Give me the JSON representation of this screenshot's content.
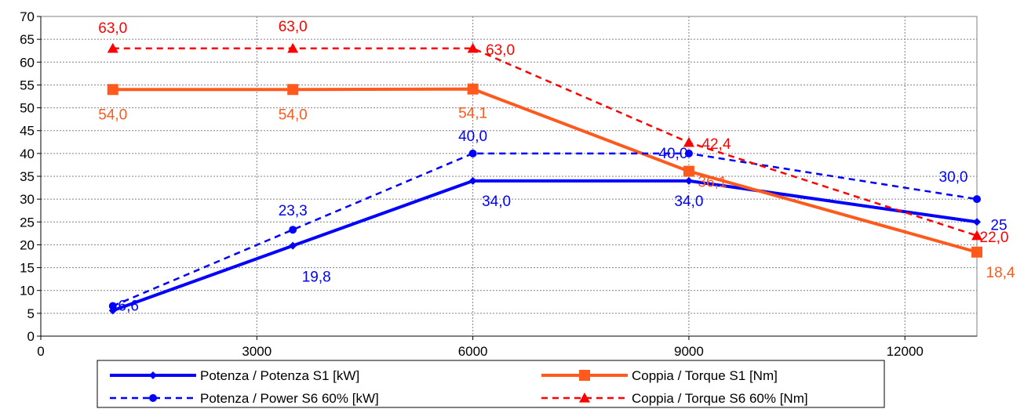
{
  "chart_data": {
    "type": "line",
    "title": "",
    "xlabel": "",
    "ylabel": "",
    "xlim": [
      0,
      13000
    ],
    "ylim": [
      0,
      70
    ],
    "x_ticks": [
      0,
      3000,
      6000,
      9000,
      12000
    ],
    "y_ticks": [
      0,
      5,
      10,
      15,
      20,
      25,
      30,
      35,
      40,
      45,
      50,
      55,
      60,
      65,
      70
    ],
    "grid": true,
    "legend_position": "bottom",
    "series": [
      {
        "name": "Potenza / Potenza S1 [kW]",
        "color": "#0000ff",
        "dash": "solid",
        "marker": "diamond",
        "x": [
          1000,
          3500,
          6000,
          9000,
          13000
        ],
        "y": [
          5.6,
          19.8,
          34.0,
          34.0,
          25.0
        ],
        "labels": [
          "",
          "19,8",
          "34,0",
          "34,0",
          "25"
        ]
      },
      {
        "name": "Coppia / Torque S1 [Nm]",
        "color": "#ff5a1e",
        "dash": "solid",
        "marker": "square",
        "x": [
          1000,
          3500,
          6000,
          9000,
          13000
        ],
        "y": [
          54.0,
          54.0,
          54.1,
          36.1,
          18.4
        ],
        "labels": [
          "54,0",
          "54,0",
          "54,1",
          "36,1",
          "18,4"
        ]
      },
      {
        "name": "Potenza / Power S6 60% [kW]",
        "color": "#0000ff",
        "dash": "dashed",
        "marker": "circle",
        "x": [
          1000,
          3500,
          6000,
          9000,
          13000
        ],
        "y": [
          6.6,
          23.3,
          40.0,
          40.0,
          30.0
        ],
        "labels": [
          "6,6",
          "23,3",
          "40,0",
          "40,0",
          "30,0"
        ]
      },
      {
        "name": "Coppia / Torque S6 60% [Nm]",
        "color": "#ff0000",
        "dash": "dashed",
        "marker": "triangle",
        "x": [
          1000,
          3500,
          6000,
          9000,
          13000
        ],
        "y": [
          63.0,
          63.0,
          63.0,
          42.4,
          22.0
        ],
        "labels": [
          "63,0",
          "63,0",
          "63,0",
          "42,4",
          "22,0"
        ]
      }
    ]
  }
}
